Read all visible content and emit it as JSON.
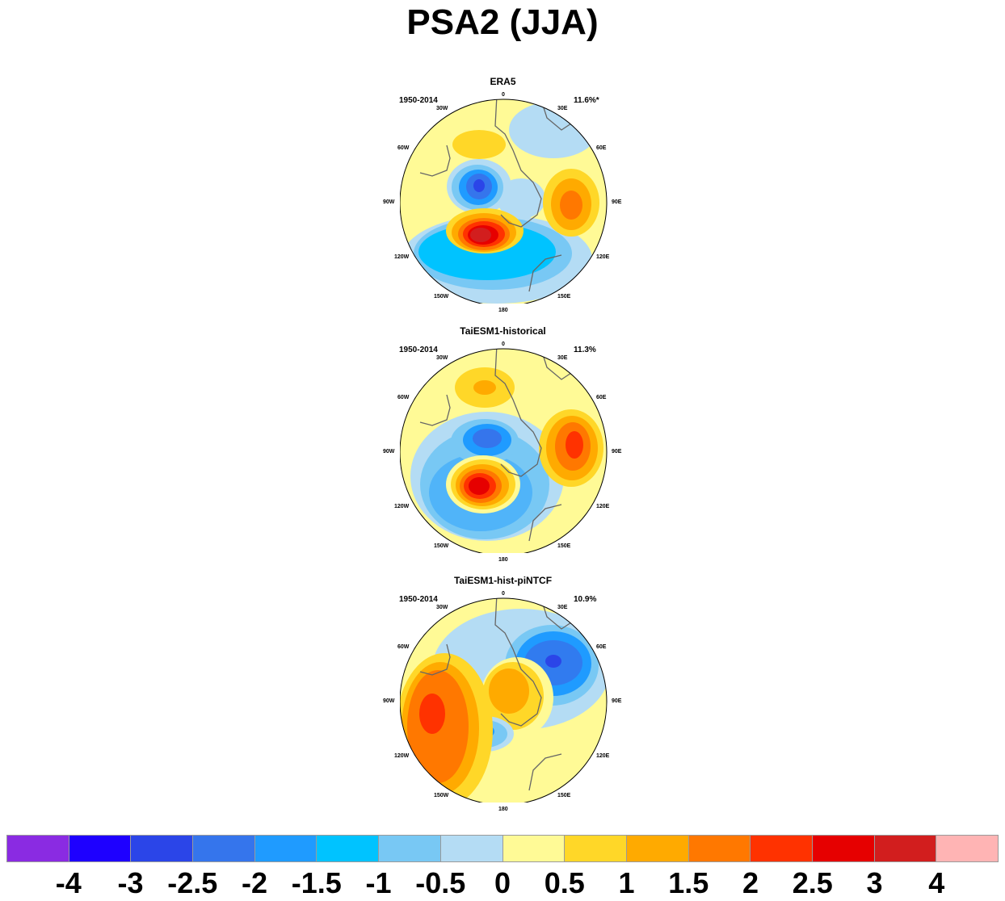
{
  "title": "PSA2 (JJA)",
  "panels": [
    {
      "title": "ERA5",
      "years": "1950-2014",
      "variance": "11.6%*"
    },
    {
      "title": "TaiESM1-historical",
      "years": "1950-2014",
      "variance": "11.3%"
    },
    {
      "title": "TaiESM1-hist-piNTCF",
      "years": "1950-2014",
      "variance": "10.9%"
    }
  ],
  "longitude_labels": {
    "lon_0": "0",
    "lon_30e": "30E",
    "lon_60e": "60E",
    "lon_90e": "90E",
    "lon_120e": "120E",
    "lon_150e": "150E",
    "lon_180": "180",
    "lon_150w": "150W",
    "lon_120w": "120W",
    "lon_90w": "90W",
    "lon_60w": "60W",
    "lon_30w": "30W"
  },
  "colorbar": {
    "colors": [
      "#8a2be2",
      "#1e00ff",
      "#2b45e8",
      "#3575ec",
      "#1f9bff",
      "#00c3ff",
      "#78c8f4",
      "#b4dcf4",
      "#fffa96",
      "#ffd728",
      "#ffaa00",
      "#ff7800",
      "#ff3200",
      "#e60000",
      "#d21e1e",
      "#ffb4b4"
    ],
    "labels": [
      "-4",
      "-3",
      "-2.5",
      "-2",
      "-1.5",
      "-1",
      "-0.5",
      "0",
      "0.5",
      "1",
      "1.5",
      "2",
      "2.5",
      "3",
      "4"
    ]
  }
}
